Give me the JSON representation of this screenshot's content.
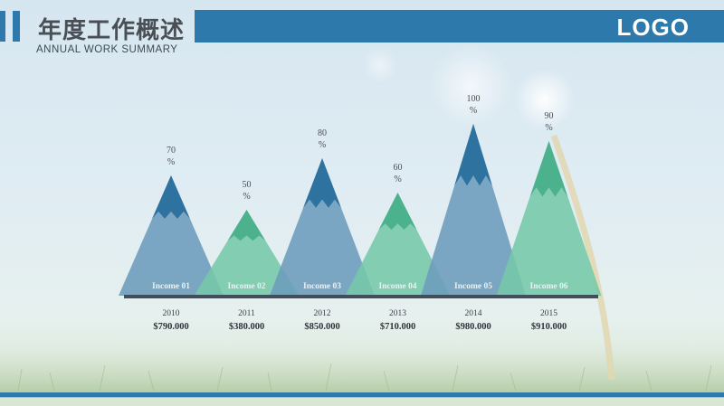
{
  "header": {
    "title_cn": "年度工作概述",
    "title_en": "ANNUAL  WORK SUMMARY",
    "logo": "LOGO"
  },
  "colors": {
    "accent": "#2e79ab",
    "mountain_blue": "#6c9cbc",
    "mountain_blue_peak": "#2a6f9e",
    "mountain_green": "#75c8a8",
    "mountain_green_peak": "#49b08c",
    "baseline": "#3f4f5e"
  },
  "chart_data": {
    "type": "bar",
    "ylim": [
      0,
      100
    ],
    "series": [
      {
        "values": [
          70,
          50,
          80,
          60,
          100,
          90
        ]
      }
    ],
    "value_labels": [
      "70\n%",
      "50\n%",
      "80\n%",
      "60\n%",
      "100\n%",
      "90\n%"
    ],
    "categories": [
      "Income 01",
      "Income 02",
      "Income 03",
      "Income 04",
      "Income 05",
      "Income 06"
    ],
    "years": [
      "2010",
      "2011",
      "2012",
      "2013",
      "2014",
      "2015"
    ],
    "amounts": [
      "$790.000",
      "$380.000",
      "$850.000",
      "$710.000",
      "$980.000",
      "$910.000"
    ],
    "styles": [
      "blue",
      "green",
      "blue",
      "green",
      "blue",
      "green"
    ]
  }
}
